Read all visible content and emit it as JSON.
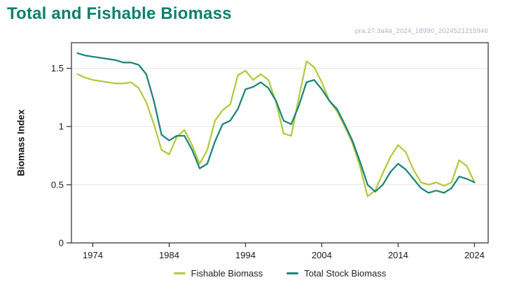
{
  "title": "Total and Fishable Biomass",
  "watermark": "pra.27.3a4a_2024_18990_2024521215946",
  "colors": {
    "title": "#0d806c",
    "watermark": "#a8b2c7",
    "axis_text": "#1a1a1a",
    "frame": "#3a3a3a",
    "gridline": "#e9e9e9",
    "background": "#ffffff"
  },
  "chart_data": {
    "type": "line",
    "title": "Total and Fishable Biomass",
    "xlabel": "",
    "ylabel": "Biomass Index",
    "xlim": [
      1971.2,
      2025.8
    ],
    "ylim": [
      0,
      1.72
    ],
    "xticks": [
      1974,
      1984,
      1994,
      2004,
      2014,
      2024
    ],
    "yticks": [
      0,
      0.5,
      1,
      1.5
    ],
    "grid": "horizontal-only",
    "legend_position": "bottom-center",
    "x": [
      1972,
      1973,
      1974,
      1975,
      1976,
      1977,
      1978,
      1979,
      1980,
      1981,
      1982,
      1983,
      1984,
      1985,
      1986,
      1987,
      1988,
      1989,
      1990,
      1991,
      1992,
      1993,
      1994,
      1995,
      1996,
      1997,
      1998,
      1999,
      2000,
      2001,
      2002,
      2003,
      2004,
      2005,
      2006,
      2007,
      2008,
      2009,
      2010,
      2011,
      2012,
      2013,
      2014,
      2015,
      2016,
      2017,
      2018,
      2019,
      2020,
      2021,
      2022,
      2023,
      2024
    ],
    "series": [
      {
        "name": "Fishable Biomass",
        "color": "#b3cb3d",
        "values": [
          1.45,
          1.42,
          1.4,
          1.39,
          1.38,
          1.37,
          1.37,
          1.38,
          1.33,
          1.21,
          1.02,
          0.8,
          0.76,
          0.91,
          0.97,
          0.84,
          0.68,
          0.8,
          1.05,
          1.14,
          1.19,
          1.44,
          1.48,
          1.4,
          1.45,
          1.4,
          1.21,
          0.94,
          0.92,
          1.25,
          1.56,
          1.51,
          1.38,
          1.22,
          1.13,
          1.0,
          0.86,
          0.66,
          0.4,
          0.45,
          0.6,
          0.74,
          0.84,
          0.78,
          0.63,
          0.52,
          0.5,
          0.52,
          0.49,
          0.52,
          0.71,
          0.66,
          0.52
        ]
      },
      {
        "name": "Total Stock Biomass",
        "color": "#1e8579",
        "values": [
          1.63,
          1.61,
          1.6,
          1.59,
          1.58,
          1.57,
          1.55,
          1.55,
          1.53,
          1.45,
          1.22,
          0.93,
          0.88,
          0.92,
          0.92,
          0.8,
          0.64,
          0.68,
          0.87,
          1.02,
          1.05,
          1.15,
          1.32,
          1.34,
          1.38,
          1.33,
          1.22,
          1.05,
          1.02,
          1.18,
          1.38,
          1.4,
          1.32,
          1.22,
          1.15,
          1.02,
          0.88,
          0.7,
          0.5,
          0.44,
          0.5,
          0.61,
          0.68,
          0.63,
          0.55,
          0.47,
          0.43,
          0.45,
          0.43,
          0.47,
          0.57,
          0.55,
          0.52
        ]
      }
    ]
  }
}
